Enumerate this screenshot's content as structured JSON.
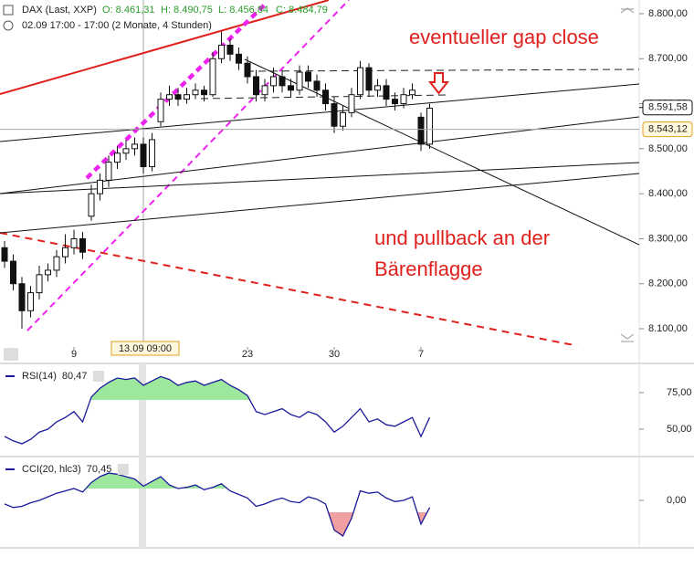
{
  "header": {
    "symbol": "DAX (Last, XXP)",
    "open": "O: 8.461,31",
    "high": "H: 8.490,75",
    "low": "L: 8.456,84",
    "close": "C: 8.484,79",
    "range": "02.09 17:00 - 17:00 (2 Monate, 4 Stunden)"
  },
  "chart_data": [
    {
      "type": "candlestick",
      "categories": [
        null,
        null,
        null,
        null,
        null,
        null,
        null,
        null,
        "9",
        null,
        null,
        null,
        null,
        null,
        null,
        null,
        null,
        null,
        null,
        null,
        null,
        null,
        null,
        null,
        null,
        null,
        null,
        null,
        "23",
        null,
        null,
        null,
        null,
        null,
        null,
        null,
        null,
        null,
        "30",
        null,
        null,
        null,
        null,
        null,
        null,
        null,
        null,
        null,
        "7",
        null
      ],
      "open": [
        8280,
        8250,
        8200,
        8140,
        8180,
        8220,
        8230,
        8260,
        8280,
        8300,
        8350,
        8400,
        8430,
        8470,
        8490,
        8500,
        8510,
        8460,
        8560,
        8610,
        8620,
        8610,
        8620,
        8630,
        8620,
        8700,
        8730,
        8710,
        8690,
        8660,
        8620,
        8640,
        8660,
        8640,
        8630,
        8670,
        8650,
        8630,
        8600,
        8550,
        8580,
        8620,
        8680,
        8630,
        8640,
        8610,
        8600,
        8620,
        8570,
        8510
      ],
      "high": [
        8295,
        8265,
        8215,
        8195,
        8240,
        8245,
        8275,
        8310,
        8320,
        8315,
        8420,
        8445,
        8485,
        8505,
        8520,
        8525,
        8525,
        8535,
        8625,
        8640,
        8635,
        8635,
        8645,
        8640,
        8715,
        8760,
        8745,
        8725,
        8705,
        8675,
        8655,
        8680,
        8675,
        8655,
        8685,
        8685,
        8665,
        8645,
        8615,
        8595,
        8635,
        8695,
        8690,
        8655,
        8655,
        8625,
        8635,
        8645,
        8580,
        8600
      ],
      "low": [
        8235,
        8185,
        8100,
        8125,
        8165,
        8205,
        8215,
        8245,
        8265,
        8255,
        8340,
        8385,
        8415,
        8455,
        8475,
        8485,
        8445,
        8450,
        8550,
        8595,
        8595,
        8600,
        8610,
        8605,
        8615,
        8690,
        8695,
        8675,
        8645,
        8605,
        8605,
        8625,
        8625,
        8615,
        8620,
        8635,
        8615,
        8585,
        8535,
        8540,
        8570,
        8610,
        8615,
        8615,
        8595,
        8585,
        8590,
        8610,
        8495,
        8500
      ],
      "close": [
        8250,
        8200,
        8140,
        8180,
        8220,
        8230,
        8260,
        8280,
        8300,
        8270,
        8400,
        8430,
        8470,
        8490,
        8500,
        8510,
        8460,
        8520,
        8610,
        8620,
        8610,
        8620,
        8630,
        8620,
        8700,
        8730,
        8710,
        8690,
        8660,
        8620,
        8640,
        8660,
        8640,
        8630,
        8670,
        8650,
        8630,
        8600,
        8550,
        8580,
        8620,
        8680,
        8630,
        8640,
        8610,
        8600,
        8620,
        8630,
        8510,
        8590
      ],
      "ylim": [
        8063.5,
        8830.4
      ],
      "yticks": [
        {
          "value": 8800,
          "label": "8.800,00"
        },
        {
          "value": 8700,
          "label": "8.700,00"
        },
        {
          "value": 8600,
          "label": "8.600,00"
        },
        {
          "value": 8500,
          "label": "8.500,00"
        },
        {
          "value": 8400,
          "label": "8.400,00"
        },
        {
          "value": 8300,
          "label": "8.300,00"
        },
        {
          "value": 8200,
          "label": "8.200,00"
        },
        {
          "value": 8100,
          "label": "8.100,00"
        }
      ],
      "price_markers": [
        {
          "value": 8591.58,
          "label": "8.591,58"
        },
        {
          "value": 8543.12,
          "label": "8.543,12"
        }
      ],
      "crosshair_label": "13.09 09:00",
      "annotations": [
        "eventueller gap close",
        "und pullback an der Bärenflagge"
      ]
    },
    {
      "type": "line",
      "name": "RSI(14)",
      "last_label": "80,47",
      "color": "#1a1a9c",
      "fill_threshold": 70,
      "values": [
        45,
        42,
        40,
        43,
        48,
        50,
        55,
        58,
        62,
        55,
        72,
        78,
        82,
        85,
        84,
        85,
        80,
        83,
        86,
        84,
        80,
        82,
        83,
        80,
        82,
        84,
        80,
        77,
        73,
        62,
        60,
        62,
        64,
        60,
        58,
        62,
        60,
        55,
        48,
        52,
        58,
        64,
        55,
        57,
        53,
        52,
        55,
        58,
        45,
        58
      ],
      "ylim": [
        32.5,
        93.75
      ],
      "yticks": [
        {
          "value": 75,
          "label": "75,00"
        },
        {
          "value": 50,
          "label": "50,00"
        }
      ]
    },
    {
      "type": "line",
      "name": "CCI(20, hlc3)",
      "last_label": "70,45",
      "color": "#1a1a9c",
      "fill_threshold": 100,
      "values": [
        -30,
        -60,
        -50,
        -20,
        0,
        30,
        60,
        80,
        100,
        70,
        150,
        200,
        230,
        220,
        200,
        180,
        120,
        160,
        200,
        130,
        100,
        110,
        130,
        90,
        110,
        140,
        80,
        50,
        20,
        -50,
        -30,
        0,
        20,
        -10,
        -20,
        30,
        10,
        -30,
        -250,
        -300,
        -150,
        80,
        60,
        70,
        20,
        -10,
        0,
        30,
        -200,
        -60
      ],
      "ylim": [
        -384.6,
        353.8
      ],
      "yticks": [
        {
          "value": 0,
          "label": "0,00"
        }
      ]
    }
  ]
}
